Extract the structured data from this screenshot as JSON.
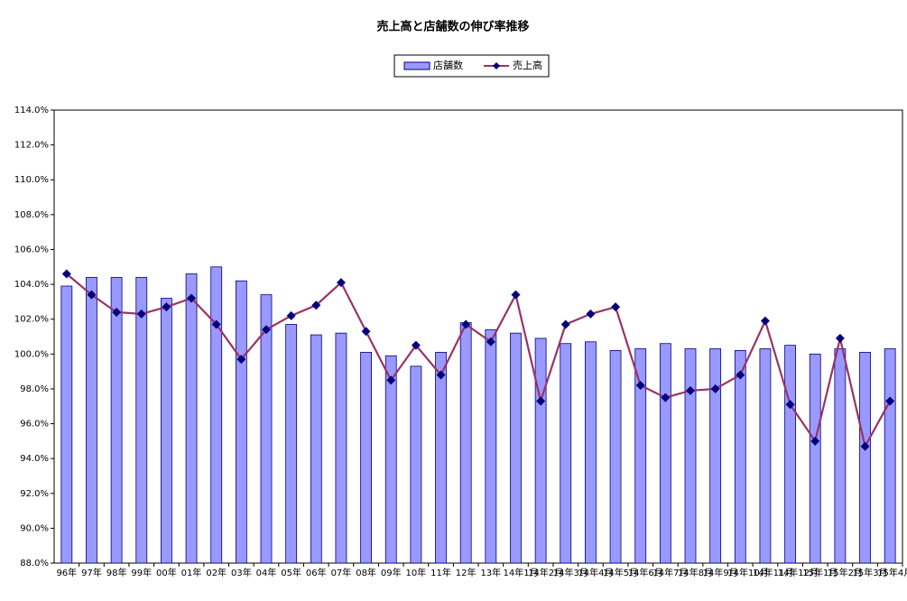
{
  "chart_data": {
    "type": "bar-line",
    "title": "売上高と店舗数の伸び率推移",
    "categories": [
      "96年",
      "97年",
      "98年",
      "99年",
      "00年",
      "01年",
      "02年",
      "03年",
      "04年",
      "05年",
      "06年",
      "07年",
      "08年",
      "09年",
      "10年",
      "11年",
      "12年",
      "13年",
      "14年1月",
      "14年2月",
      "14年3月",
      "14年4月",
      "14年5月",
      "14年6月",
      "14年7月",
      "14年8月",
      "14年9月",
      "14年10月",
      "14年11月",
      "14年12月",
      "15年1月",
      "15年2月",
      "15年3月",
      "15年4月"
    ],
    "series": [
      {
        "name": "店舗数",
        "type": "bar",
        "color": "#9999ff",
        "values": [
          103.9,
          104.4,
          104.4,
          104.4,
          103.2,
          104.6,
          105.0,
          104.2,
          103.4,
          101.7,
          101.1,
          101.2,
          100.1,
          99.9,
          99.3,
          100.1,
          101.8,
          101.4,
          101.2,
          100.9,
          100.6,
          100.7,
          100.2,
          100.3,
          100.6,
          100.3,
          100.3,
          100.2,
          100.3,
          100.5,
          100.0,
          100.3,
          100.1,
          100.3
        ]
      },
      {
        "name": "売上高",
        "type": "line",
        "color": "#993366",
        "marker_color": "#000080",
        "values": [
          104.6,
          103.4,
          102.4,
          102.3,
          102.7,
          103.2,
          101.7,
          99.7,
          101.4,
          102.2,
          102.8,
          104.1,
          101.3,
          98.5,
          100.5,
          98.8,
          101.7,
          100.7,
          103.4,
          97.3,
          101.7,
          102.3,
          102.7,
          98.2,
          97.5,
          97.9,
          98.0,
          98.8,
          101.9,
          97.1,
          95.0,
          100.9,
          94.7,
          97.3
        ]
      }
    ],
    "ylim": [
      88,
      114
    ],
    "yticks": [
      {
        "value": 88,
        "label": "88.0%"
      },
      {
        "value": 90,
        "label": "90.0%"
      },
      {
        "value": 92,
        "label": "92.0%"
      },
      {
        "value": 94,
        "label": "94.0%"
      },
      {
        "value": 96,
        "label": "96.0%"
      },
      {
        "value": 98,
        "label": "98.0%"
      },
      {
        "value": 100,
        "label": "100.0%"
      },
      {
        "value": 102,
        "label": "102.0%"
      },
      {
        "value": 104,
        "label": "104.0%"
      },
      {
        "value": 106,
        "label": "106.0%"
      },
      {
        "value": 108,
        "label": "108.0%"
      },
      {
        "value": 110,
        "label": "110.0%"
      },
      {
        "value": 112,
        "label": "112.0%"
      },
      {
        "value": 114,
        "label": "114.0%"
      }
    ],
    "grid": false,
    "legend": "top"
  }
}
